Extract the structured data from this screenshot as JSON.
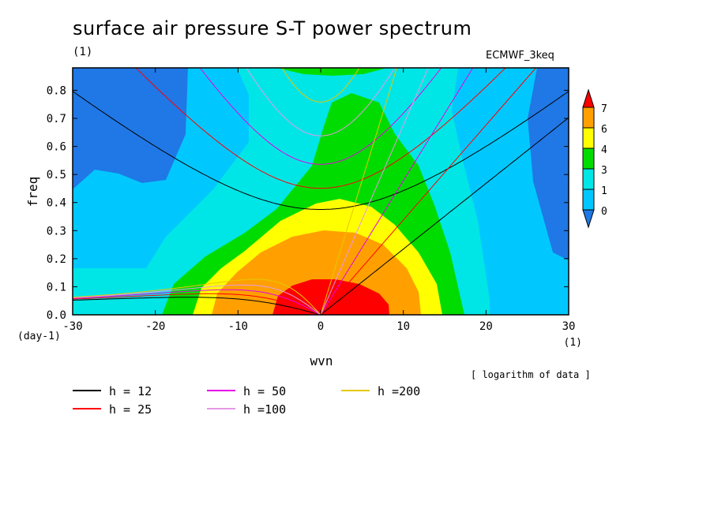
{
  "chart_data": {
    "type": "heatmap",
    "title": "surface air pressure S-T power spectrum",
    "subtitle": "(1)",
    "source_label": "ECMWF_3keq",
    "xlabel": "wvn",
    "ylabel": "freq",
    "x_unit": "(1)",
    "y_unit": "(day-1)",
    "note": "[ logarithm of data ]",
    "xlim": [
      -30,
      30
    ],
    "ylim": [
      0,
      0.88
    ],
    "x_ticks": [
      -30,
      -20,
      -10,
      0,
      10,
      20,
      30
    ],
    "x_tick_labels": [
      "-30",
      "-20",
      "-10",
      "0",
      "10",
      "20",
      "30"
    ],
    "y_ticks": [
      0,
      0.1,
      0.2,
      0.3,
      0.4,
      0.5,
      0.6,
      0.7,
      0.8
    ],
    "y_tick_labels": [
      "0.0",
      "0.1",
      "0.2",
      "0.3",
      "0.4",
      "0.5",
      "0.6",
      "0.7",
      "0.8"
    ],
    "colorbar": {
      "labels": [
        "0",
        "1",
        "3",
        "4",
        "6",
        "7"
      ],
      "colors": [
        "#1f78e6",
        "#00c8ff",
        "#00e6e6",
        "#00dc00",
        "#ffff00",
        "#ffa000",
        "#ff0000"
      ]
    },
    "contour_fill": {
      "levels": [
        0,
        1,
        3,
        4,
        6,
        7
      ],
      "peak": {
        "wvn": 3,
        "freq": 0.05
      },
      "min_regions": [
        {
          "wvn_range": [
            -30,
            -13
          ],
          "freq_range": [
            0.25,
            0.88
          ]
        },
        {
          "wvn_range": [
            26,
            30
          ],
          "freq_range": [
            0.2,
            0.88
          ]
        }
      ]
    },
    "dispersion_curves": {
      "equivalent_depths": [
        12,
        25,
        50,
        100,
        200
      ],
      "legend": [
        {
          "label": "h = 12",
          "color": "#000000"
        },
        {
          "label": "h = 25",
          "color": "#ff0000"
        },
        {
          "label": "h = 50",
          "color": "#e600e6"
        },
        {
          "label": "h =100",
          "color": "#e699e6"
        },
        {
          "label": "h =200",
          "color": "#e6c800"
        }
      ],
      "families": [
        "Kelvin",
        "Rossby n=1",
        "inertia-gravity n=1"
      ]
    }
  }
}
